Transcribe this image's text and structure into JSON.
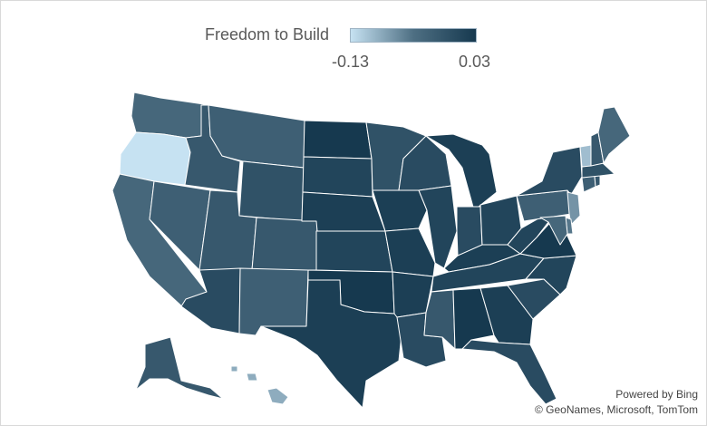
{
  "legend": {
    "title": "Freedom to Build",
    "min_label": "-0.13",
    "max_label": "0.03",
    "min_value": -0.13,
    "max_value": 0.03,
    "color_low": "#c6e2f2",
    "color_high": "#16394f"
  },
  "credits": {
    "line1": "Powered by Bing",
    "line2": "© GeoNames, Microsoft, TomTom"
  },
  "states": [
    {
      "name": "WA",
      "value": -0.04
    },
    {
      "name": "OR",
      "value": -0.13
    },
    {
      "name": "CA",
      "value": -0.04
    },
    {
      "name": "ID",
      "value": -0.02
    },
    {
      "name": "NV",
      "value": -0.03
    },
    {
      "name": "MT",
      "value": -0.03
    },
    {
      "name": "WY",
      "value": -0.01
    },
    {
      "name": "UT",
      "value": -0.02
    },
    {
      "name": "AZ",
      "value": 0.0
    },
    {
      "name": "CO",
      "value": -0.02
    },
    {
      "name": "NM",
      "value": -0.03
    },
    {
      "name": "ND",
      "value": 0.03
    },
    {
      "name": "SD",
      "value": 0.01
    },
    {
      "name": "NE",
      "value": 0.02
    },
    {
      "name": "KS",
      "value": 0.01
    },
    {
      "name": "OK",
      "value": 0.03
    },
    {
      "name": "TX",
      "value": 0.02
    },
    {
      "name": "MN",
      "value": -0.01
    },
    {
      "name": "IA",
      "value": 0.02
    },
    {
      "name": "MO",
      "value": 0.02
    },
    {
      "name": "AR",
      "value": 0.02
    },
    {
      "name": "LA",
      "value": 0.0
    },
    {
      "name": "WI",
      "value": 0.0
    },
    {
      "name": "IL",
      "value": 0.01
    },
    {
      "name": "MS",
      "value": -0.02
    },
    {
      "name": "MI",
      "value": 0.02
    },
    {
      "name": "IN",
      "value": 0.0
    },
    {
      "name": "OH",
      "value": 0.01
    },
    {
      "name": "KY",
      "value": 0.02
    },
    {
      "name": "TN",
      "value": 0.01
    },
    {
      "name": "AL",
      "value": 0.03
    },
    {
      "name": "GA",
      "value": 0.02
    },
    {
      "name": "FL",
      "value": 0.0
    },
    {
      "name": "SC",
      "value": 0.0
    },
    {
      "name": "NC",
      "value": 0.01
    },
    {
      "name": "VA",
      "value": 0.03
    },
    {
      "name": "WV",
      "value": 0.01
    },
    {
      "name": "PA",
      "value": -0.03
    },
    {
      "name": "NY",
      "value": 0.0
    },
    {
      "name": "NJ",
      "value": -0.09
    },
    {
      "name": "DE",
      "value": -0.06
    },
    {
      "name": "MD",
      "value": -0.04
    },
    {
      "name": "CT",
      "value": -0.03
    },
    {
      "name": "RI",
      "value": -0.02
    },
    {
      "name": "MA",
      "value": -0.01
    },
    {
      "name": "VT",
      "value": -0.12
    },
    {
      "name": "NH",
      "value": -0.02
    },
    {
      "name": "ME",
      "value": -0.04
    },
    {
      "name": "AK",
      "value": -0.02
    },
    {
      "name": "HI",
      "value": -0.11
    }
  ]
}
